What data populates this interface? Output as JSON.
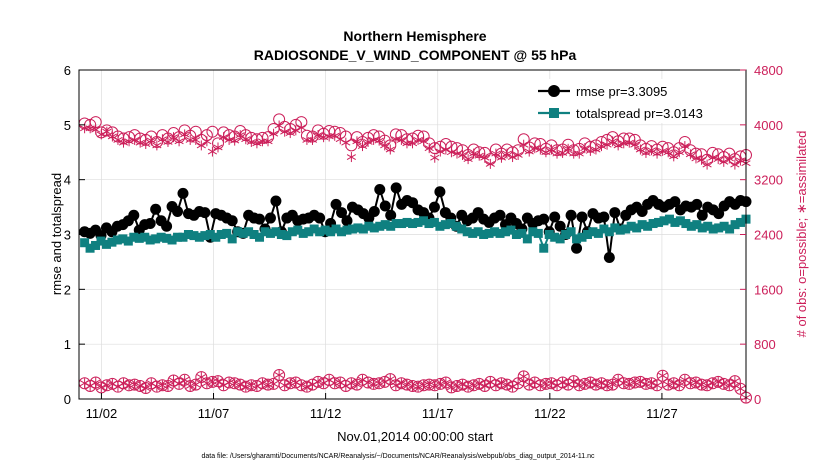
{
  "chart_data": {
    "type": "line",
    "title": "Northern Hemisphere",
    "subtitle": "RADIOSONDE_V_WIND_COMPONENT @ 55 hPa",
    "xlabel": "Nov.01,2014 00:00:00 start",
    "ylabel_left": "rmse and totalspread",
    "ylabel_right": "# of obs: o=possible; ∗=assimilated",
    "footer": "data file: /Users/gharamti/Documents/NCAR/Reanalysis/~/Documents/NCAR/Reanalysis/webpub/obs_diag_output_2014-11.nc",
    "x_tick_labels": [
      "11/02",
      "11/07",
      "11/12",
      "11/17",
      "11/22",
      "11/27"
    ],
    "x_tick_days": [
      2,
      7,
      12,
      17,
      22,
      27
    ],
    "xlim": [
      1.0,
      30.75
    ],
    "ylim_left": [
      0,
      6
    ],
    "yticks_left": [
      "0",
      "1",
      "2",
      "3",
      "4",
      "5",
      "6"
    ],
    "ylim_right": [
      0,
      4800
    ],
    "yticks_right": [
      "0",
      "800",
      "1600",
      "2400",
      "3200",
      "4000",
      "4800"
    ],
    "grid": true,
    "legend_position": "top-right",
    "colors": {
      "rmse": "#000000",
      "totalspread": "#0f8080",
      "obs": "#cc1f5a",
      "grid": "#dddddd"
    },
    "series": [
      {
        "name": "rmse",
        "legend": "rmse pr=3.3095",
        "axis": "left",
        "values": [
          3.05,
          3.02,
          3.08,
          2.98,
          3.12,
          3.05,
          3.15,
          3.18,
          3.25,
          3.35,
          3.08,
          3.18,
          3.2,
          3.46,
          3.25,
          3.15,
          3.51,
          3.42,
          3.75,
          3.38,
          3.35,
          3.42,
          3.4,
          2.95,
          3.38,
          3.35,
          3.3,
          3.25,
          3.05,
          3.02,
          3.35,
          3.3,
          3.28,
          3.1,
          3.3,
          3.61,
          3.05,
          3.3,
          3.35,
          3.25,
          3.28,
          3.3,
          3.35,
          3.3,
          3.05,
          3.2,
          3.55,
          3.4,
          3.25,
          3.5,
          3.45,
          3.38,
          3.3,
          3.42,
          3.82,
          3.52,
          3.35,
          3.85,
          3.55,
          3.62,
          3.58,
          3.45,
          3.4,
          3.3,
          3.5,
          3.78,
          3.4,
          3.3,
          3.15,
          3.35,
          3.25,
          3.3,
          3.4,
          3.28,
          3.22,
          3.3,
          3.35,
          3.18,
          3.3,
          3.2,
          3.1,
          3.3,
          3.2,
          3.25,
          3.28,
          3.05,
          3.32,
          3.15,
          3.0,
          3.35,
          2.75,
          3.32,
          3.05,
          3.38,
          3.3,
          3.32,
          2.58,
          3.4,
          3.1,
          3.35,
          3.45,
          3.5,
          3.42,
          3.55,
          3.62,
          3.55,
          3.5,
          3.55,
          3.6,
          3.45,
          3.52,
          3.5,
          3.55,
          3.35,
          3.5,
          3.45,
          3.38,
          3.52,
          3.6,
          3.55,
          3.62,
          3.6
        ]
      },
      {
        "name": "totalspread",
        "legend": "totalspread pr=3.0143",
        "axis": "left",
        "values": [
          2.85,
          2.75,
          2.8,
          2.88,
          2.82,
          2.86,
          2.9,
          2.92,
          2.88,
          2.95,
          2.93,
          2.95,
          2.9,
          2.92,
          2.95,
          2.93,
          2.9,
          2.95,
          2.95,
          3.0,
          2.98,
          2.95,
          2.98,
          3.0,
          2.95,
          3.0,
          3.02,
          2.92,
          3.05,
          3.02,
          3.05,
          3.0,
          2.95,
          3.05,
          3.02,
          3.05,
          3.0,
          2.98,
          3.05,
          3.08,
          3.02,
          3.05,
          3.1,
          3.05,
          3.08,
          3.05,
          3.1,
          3.05,
          3.08,
          3.1,
          3.12,
          3.1,
          3.15,
          3.12,
          3.15,
          3.18,
          3.15,
          3.2,
          3.2,
          3.22,
          3.2,
          3.22,
          3.25,
          3.2,
          3.22,
          3.15,
          3.18,
          3.2,
          3.15,
          3.1,
          3.05,
          3.02,
          3.05,
          3.0,
          3.02,
          3.05,
          3.02,
          3.05,
          3.08,
          3.0,
          3.02,
          2.92,
          3.05,
          3.02,
          2.75,
          3.0,
          2.95,
          2.92,
          3.0,
          3.05,
          2.92,
          2.95,
          3.0,
          3.05,
          3.02,
          3.1,
          3.05,
          3.12,
          3.08,
          3.1,
          3.15,
          3.12,
          3.18,
          3.15,
          3.2,
          3.22,
          3.25,
          3.28,
          3.22,
          3.25,
          3.2,
          3.15,
          3.18,
          3.12,
          3.15,
          3.1,
          3.12,
          3.15,
          3.1,
          3.18,
          3.22,
          3.28
        ]
      },
      {
        "name": "possible_obs_upper",
        "axis": "right",
        "marker": "circle",
        "values": [
          4020,
          4000,
          4040,
          3890,
          3920,
          3890,
          3830,
          3800,
          3820,
          3850,
          3800,
          3780,
          3830,
          3750,
          3850,
          3800,
          3880,
          3820,
          3920,
          3840,
          3900,
          3780,
          3850,
          3900,
          3730,
          3890,
          3850,
          3830,
          3910,
          3850,
          3810,
          3790,
          3810,
          3820,
          3940,
          4080,
          3970,
          3940,
          4000,
          4040,
          3840,
          3830,
          3920,
          3870,
          3910,
          3900,
          3880,
          3830,
          3700,
          3820,
          3750,
          3810,
          3850,
          3830,
          3770,
          3700,
          3860,
          3850,
          3790,
          3800,
          3840,
          3830,
          3730,
          3660,
          3680,
          3720,
          3680,
          3660,
          3630,
          3560,
          3640,
          3600,
          3590,
          3500,
          3640,
          3580,
          3640,
          3600,
          3630,
          3790,
          3670,
          3730,
          3720,
          3650,
          3700,
          3630,
          3640,
          3710,
          3630,
          3650,
          3730,
          3680,
          3700,
          3750,
          3780,
          3820,
          3760,
          3800,
          3800,
          3780,
          3700,
          3650,
          3690,
          3640,
          3680,
          3660,
          3600,
          3660,
          3750,
          3630,
          3580,
          3570,
          3490,
          3590,
          3570,
          3530,
          3580,
          3500,
          3540,
          3560
        ]
      },
      {
        "name": "assimilated_obs_upper",
        "axis": "right",
        "marker": "asterisk",
        "values": [
          3950,
          3950,
          3930,
          3860,
          3900,
          3830,
          3780,
          3740,
          3760,
          3780,
          3740,
          3720,
          3770,
          3700,
          3790,
          3750,
          3820,
          3760,
          3860,
          3780,
          3780,
          3700,
          3760,
          3610,
          3670,
          3820,
          3780,
          3770,
          3850,
          3790,
          3750,
          3730,
          3760,
          3760,
          3870,
          3990,
          3900,
          3880,
          3920,
          3960,
          3780,
          3780,
          3850,
          3820,
          3830,
          3840,
          3790,
          3740,
          3530,
          3760,
          3690,
          3750,
          3780,
          3770,
          3700,
          3640,
          3790,
          3780,
          3730,
          3730,
          3780,
          3760,
          3660,
          3520,
          3610,
          3640,
          3600,
          3580,
          3560,
          3500,
          3580,
          3550,
          3520,
          3430,
          3580,
          3520,
          3580,
          3530,
          3560,
          3710,
          3610,
          3660,
          3640,
          3600,
          3640,
          3580,
          3590,
          3650,
          3580,
          3580,
          3660,
          3620,
          3640,
          3690,
          3710,
          3760,
          3700,
          3730,
          3740,
          3710,
          3640,
          3590,
          3630,
          3580,
          3620,
          3600,
          3540,
          3600,
          3690,
          3570,
          3510,
          3490,
          3420,
          3520,
          3500,
          3460,
          3510,
          3420,
          3480,
          3440
        ]
      },
      {
        "name": "possible_obs_lower",
        "axis": "right",
        "marker": "circle",
        "values": [
          230,
          190,
          240,
          170,
          200,
          220,
          180,
          230,
          200,
          210,
          190,
          160,
          230,
          180,
          200,
          190,
          270,
          220,
          280,
          190,
          210,
          320,
          230,
          250,
          260,
          200,
          240,
          230,
          210,
          180,
          200,
          190,
          230,
          210,
          220,
          350,
          200,
          230,
          240,
          200,
          180,
          210,
          250,
          230,
          280,
          230,
          240,
          190,
          230,
          210,
          280,
          240,
          220,
          230,
          250,
          290,
          200,
          230,
          210,
          190,
          180,
          200,
          210,
          200,
          220,
          240,
          170,
          190,
          210,
          180,
          200,
          220,
          190,
          250,
          200,
          230,
          210,
          180,
          230,
          330,
          210,
          240,
          200,
          220,
          230,
          200,
          240,
          210,
          260,
          200,
          220,
          240,
          210,
          230,
          200,
          210,
          280,
          230,
          220,
          240,
          250,
          220,
          230,
          200,
          340,
          210,
          230,
          200,
          280,
          230,
          240,
          210,
          200,
          230,
          250,
          220,
          200,
          260,
          150,
          20
        ]
      },
      {
        "name": "assimilated_obs_lower",
        "axis": "right",
        "marker": "asterisk",
        "values": [
          230,
          190,
          240,
          170,
          200,
          220,
          180,
          230,
          200,
          210,
          190,
          160,
          230,
          180,
          200,
          190,
          270,
          220,
          280,
          190,
          210,
          320,
          230,
          250,
          260,
          200,
          240,
          230,
          210,
          180,
          200,
          190,
          230,
          210,
          220,
          350,
          200,
          230,
          240,
          200,
          180,
          210,
          250,
          230,
          280,
          230,
          240,
          190,
          230,
          210,
          280,
          240,
          220,
          230,
          250,
          290,
          200,
          230,
          210,
          190,
          180,
          200,
          210,
          200,
          220,
          240,
          170,
          190,
          210,
          180,
          200,
          220,
          190,
          250,
          200,
          230,
          210,
          180,
          230,
          330,
          210,
          240,
          200,
          220,
          230,
          200,
          240,
          210,
          260,
          200,
          220,
          240,
          210,
          230,
          200,
          210,
          280,
          230,
          220,
          240,
          250,
          220,
          230,
          200,
          340,
          210,
          230,
          200,
          280,
          230,
          240,
          210,
          200,
          230,
          250,
          220,
          200,
          260,
          150,
          20
        ]
      }
    ]
  }
}
